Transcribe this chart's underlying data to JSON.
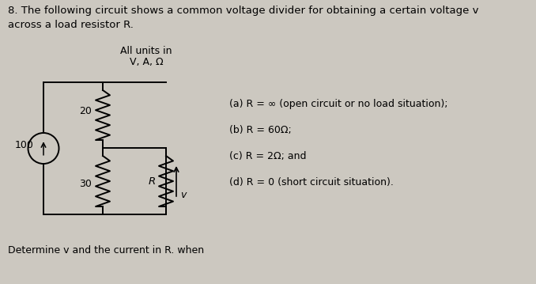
{
  "bg_color": "#ccc8c0",
  "title_text": "8. The following circuit shows a common voltage divider for obtaining a certain voltage v\nacross a load resistor R.",
  "all_units_line1": "All units in",
  "all_units_line2": "V, A, Ω",
  "label_20": "20",
  "label_30": "30",
  "label_R": "R",
  "label_v": "v",
  "label_100": "100",
  "part_a": "(a) R = ∞ (open circuit or no load situation);",
  "part_b": "(b) R = 60Ω;",
  "part_c": "(c) R = 2Ω; and",
  "part_d": "(d) R = 0 (short circuit situation).",
  "bottom_text": "Determine v and the current in R. when",
  "font_size_title": 9.5,
  "font_size_body": 9.0,
  "font_size_label": 9.0
}
